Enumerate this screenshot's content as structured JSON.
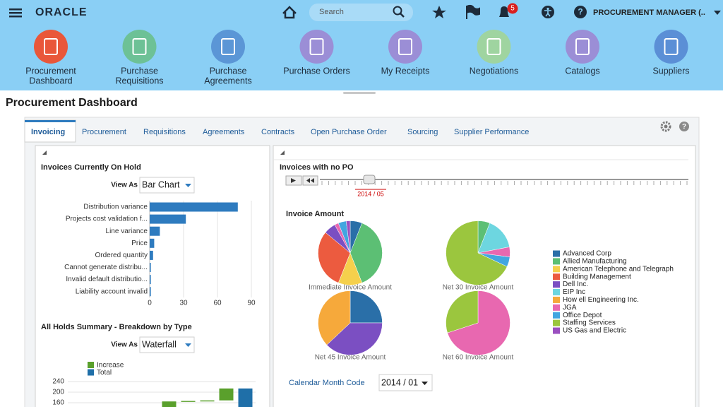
{
  "header": {
    "logo": "ORACLE",
    "search_placeholder": "Search",
    "notification_count": "5",
    "user_menu": "PROCUREMENT MANAGER (.."
  },
  "nav": [
    {
      "lines": [
        "Procurement",
        "Dashboard"
      ],
      "color": "#e9573a"
    },
    {
      "lines": [
        "Purchase",
        "Requisitions"
      ],
      "color": "#6dc196"
    },
    {
      "lines": [
        "Purchase",
        "Agreements"
      ],
      "color": "#5b96d6"
    },
    {
      "lines": [
        "Purchase Orders"
      ],
      "color": "#9b8ed6"
    },
    {
      "lines": [
        "My Receipts"
      ],
      "color": "#9b8ed6"
    },
    {
      "lines": [
        "Negotiations"
      ],
      "color": "#9fd4a0"
    },
    {
      "lines": [
        "Catalogs"
      ],
      "color": "#9b8ed6"
    },
    {
      "lines": [
        "Suppliers"
      ],
      "color": "#5b8fd6"
    }
  ],
  "page_title": "Procurement Dashboard",
  "tabs": [
    "Invoicing",
    "Procurement",
    "Requisitions",
    "Agreements",
    "Contracts",
    "Open Purchase Order",
    "Sourcing",
    "Supplier Performance"
  ],
  "active_tab": 0,
  "left_panel": {
    "hold_chart": {
      "type": "bar",
      "title": "Invoices Currently On Hold",
      "view_as_label": "View As",
      "view_as": "Bar Chart",
      "categories": [
        "Distribution variance",
        "Projects cost validation f...",
        "Line variance",
        "Price",
        "Ordered quantity",
        "Cannot generate distribu...",
        "Invalid default distributio...",
        "Liability account invalid"
      ],
      "values": [
        78,
        32,
        9,
        4,
        3,
        1,
        1,
        1
      ],
      "color": "#2e7bbf",
      "xlim": [
        0,
        90
      ],
      "xticks": [
        0,
        30,
        60,
        90
      ],
      "grid": true
    },
    "waterfall": {
      "type": "waterfall",
      "title": "All Holds Summary - Breakdown by Type",
      "view_as_label": "View As",
      "view_as": "Waterfall",
      "categories": [
        null,
        null,
        null,
        null,
        null
      ],
      "series": [
        {
          "name": "Increase",
          "color": "#5aa02c",
          "values": [
            165,
            2,
            2,
            45,
            null
          ]
        },
        {
          "name": "Total",
          "color": "#1f6fa8",
          "values": [
            null,
            null,
            null,
            null,
            214
          ]
        }
      ],
      "ylim": [
        144,
        240
      ],
      "yticks": [
        160,
        200,
        240
      ],
      "grid": true
    }
  },
  "right_panel": {
    "title": "Invoices with no PO",
    "slider_label": "2014 / 05",
    "pies": {
      "type": "pie",
      "title": "Invoice Amount",
      "legend": [
        {
          "name": "Advanced Corp",
          "color": "#2a6fa8"
        },
        {
          "name": "Allied Manufacturing",
          "color": "#5cbf74"
        },
        {
          "name": "American Telephone and Telegraph",
          "color": "#f5d04c"
        },
        {
          "name": "Building Management",
          "color": "#ec5b3f"
        },
        {
          "name": "Dell Inc.",
          "color": "#7b4fc2"
        },
        {
          "name": "EIP Inc",
          "color": "#6dd6e0"
        },
        {
          "name": "How ell Engineering Inc.",
          "color": "#f6a93b"
        },
        {
          "name": "JGA",
          "color": "#e868b0"
        },
        {
          "name": "Office Depot",
          "color": "#42a6e0"
        },
        {
          "name": "Staffing Services",
          "color": "#9bc63e"
        },
        {
          "name": "US Gas and Electric",
          "color": "#9a4fc0"
        }
      ],
      "charts": [
        {
          "label": "Immediate Invoice Amount",
          "values": [
            6,
            38,
            12,
            30,
            6,
            0,
            0,
            2,
            4,
            0,
            2
          ]
        },
        {
          "label": "Net 30 Invoice Amount",
          "values": [
            0,
            6,
            0,
            0,
            0,
            16,
            0,
            5,
            5,
            68,
            0
          ]
        },
        {
          "label": "Net 45 Invoice Amount",
          "values": [
            25,
            0,
            0,
            0,
            38,
            0,
            37,
            0,
            0,
            0,
            0
          ]
        },
        {
          "label": "Net 60 Invoice Amount",
          "values": [
            0,
            0,
            0,
            0,
            0,
            0,
            0,
            70,
            0,
            30,
            0
          ]
        }
      ]
    },
    "calendar_label": "Calendar Month Code",
    "calendar_value": "2014 / 01"
  }
}
